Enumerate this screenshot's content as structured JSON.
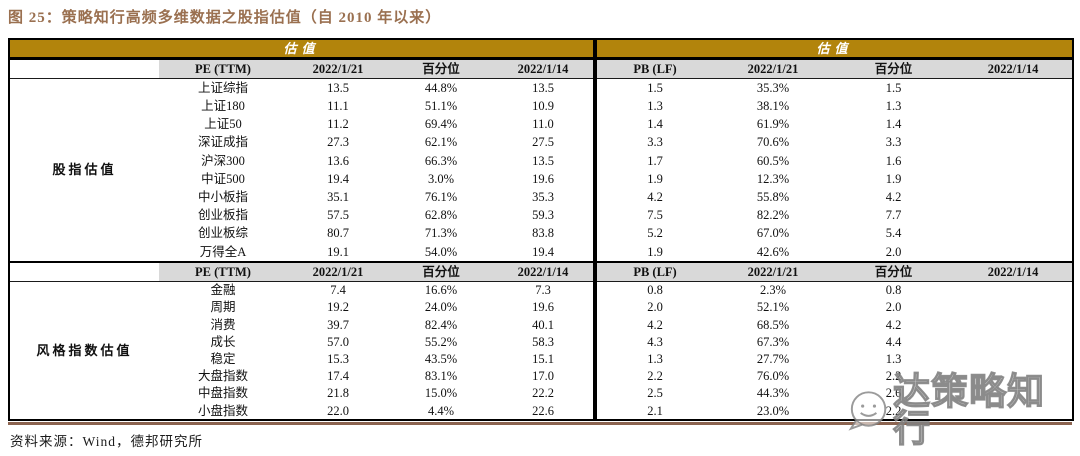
{
  "title": "图 25：策略知行高频多维数据之股指估值（自 2010 年以来）",
  "source": "资料来源：Wind，德邦研究所",
  "watermark": {
    "text": "达策略知行",
    "icon": "wechat-bubble-smiley"
  },
  "colors": {
    "banner_gold": "#b2840c",
    "subheader_gray": "#d9d9d9",
    "title_brown": "#9a7050",
    "bottom_shadow_brown": "#8c6450",
    "border_black": "#000000",
    "watermark_gray": "#9a9a9a"
  },
  "table": {
    "banner": [
      "估值",
      "估值"
    ],
    "left_metric": "PE (TTM)",
    "right_metric": "PB (LF)",
    "date_cols": [
      "2022/1/21",
      "百分位",
      "2022/1/14"
    ],
    "groups": [
      {
        "label": "股指估值",
        "left_header": [
          "PE (TTM)",
          "2022/1/21",
          "百分位",
          "2022/1/14"
        ],
        "right_header": [
          "PB (LF)",
          "2022/1/21",
          "百分位",
          "2022/1/14"
        ],
        "rows": [
          {
            "name": "上证综指",
            "pe": [
              "13.5",
              "44.8%",
              "13.5"
            ],
            "pb": [
              "1.5",
              "35.3%",
              "1.5"
            ]
          },
          {
            "name": "上证180",
            "pe": [
              "11.1",
              "51.1%",
              "10.9"
            ],
            "pb": [
              "1.3",
              "38.1%",
              "1.3"
            ]
          },
          {
            "name": "上证50",
            "pe": [
              "11.2",
              "69.4%",
              "11.0"
            ],
            "pb": [
              "1.4",
              "61.9%",
              "1.4"
            ]
          },
          {
            "name": "深证成指",
            "pe": [
              "27.3",
              "62.1%",
              "27.5"
            ],
            "pb": [
              "3.3",
              "70.6%",
              "3.3"
            ]
          },
          {
            "name": "沪深300",
            "pe": [
              "13.6",
              "66.3%",
              "13.5"
            ],
            "pb": [
              "1.7",
              "60.5%",
              "1.6"
            ]
          },
          {
            "name": "中证500",
            "pe": [
              "19.4",
              "3.0%",
              "19.6"
            ],
            "pb": [
              "1.9",
              "12.3%",
              "1.9"
            ]
          },
          {
            "name": "中小板指",
            "pe": [
              "35.1",
              "76.1%",
              "35.3"
            ],
            "pb": [
              "4.2",
              "55.8%",
              "4.2"
            ]
          },
          {
            "name": "创业板指",
            "pe": [
              "57.5",
              "62.8%",
              "59.3"
            ],
            "pb": [
              "7.5",
              "82.2%",
              "7.7"
            ]
          },
          {
            "name": "创业板综",
            "pe": [
              "80.7",
              "71.3%",
              "83.8"
            ],
            "pb": [
              "5.2",
              "67.0%",
              "5.4"
            ]
          },
          {
            "name": "万得全A",
            "pe": [
              "19.1",
              "54.0%",
              "19.4"
            ],
            "pb": [
              "1.9",
              "42.6%",
              "2.0"
            ]
          }
        ]
      },
      {
        "label": "风格指数估值",
        "left_header": [
          "PE (TTM)",
          "2022/1/21",
          "百分位",
          "2022/1/14"
        ],
        "right_header": [
          "PB (LF)",
          "2022/1/21",
          "百分位",
          "2022/1/14"
        ],
        "rows": [
          {
            "name": "金融",
            "pe": [
              "7.4",
              "16.6%",
              "7.3"
            ],
            "pb": [
              "0.8",
              "2.3%",
              "0.8"
            ]
          },
          {
            "name": "周期",
            "pe": [
              "19.2",
              "24.0%",
              "19.6"
            ],
            "pb": [
              "2.0",
              "52.1%",
              "2.0"
            ]
          },
          {
            "name": "消费",
            "pe": [
              "39.7",
              "82.4%",
              "40.1"
            ],
            "pb": [
              "4.2",
              "68.5%",
              "4.2"
            ]
          },
          {
            "name": "成长",
            "pe": [
              "57.0",
              "55.2%",
              "58.3"
            ],
            "pb": [
              "4.3",
              "67.3%",
              "4.4"
            ]
          },
          {
            "name": "稳定",
            "pe": [
              "15.3",
              "43.5%",
              "15.1"
            ],
            "pb": [
              "1.3",
              "27.7%",
              "1.3"
            ]
          },
          {
            "name": "大盘指数",
            "pe": [
              "17.4",
              "83.1%",
              "17.0"
            ],
            "pb": [
              "2.2",
              "76.0%",
              "2.2"
            ]
          },
          {
            "name": "中盘指数",
            "pe": [
              "21.8",
              "15.0%",
              "22.2"
            ],
            "pb": [
              "2.5",
              "44.3%",
              "2.6"
            ]
          },
          {
            "name": "小盘指数",
            "pe": [
              "22.0",
              "4.4%",
              "22.6"
            ],
            "pb": [
              "2.1",
              "23.0%",
              "2.2"
            ]
          }
        ]
      }
    ]
  }
}
